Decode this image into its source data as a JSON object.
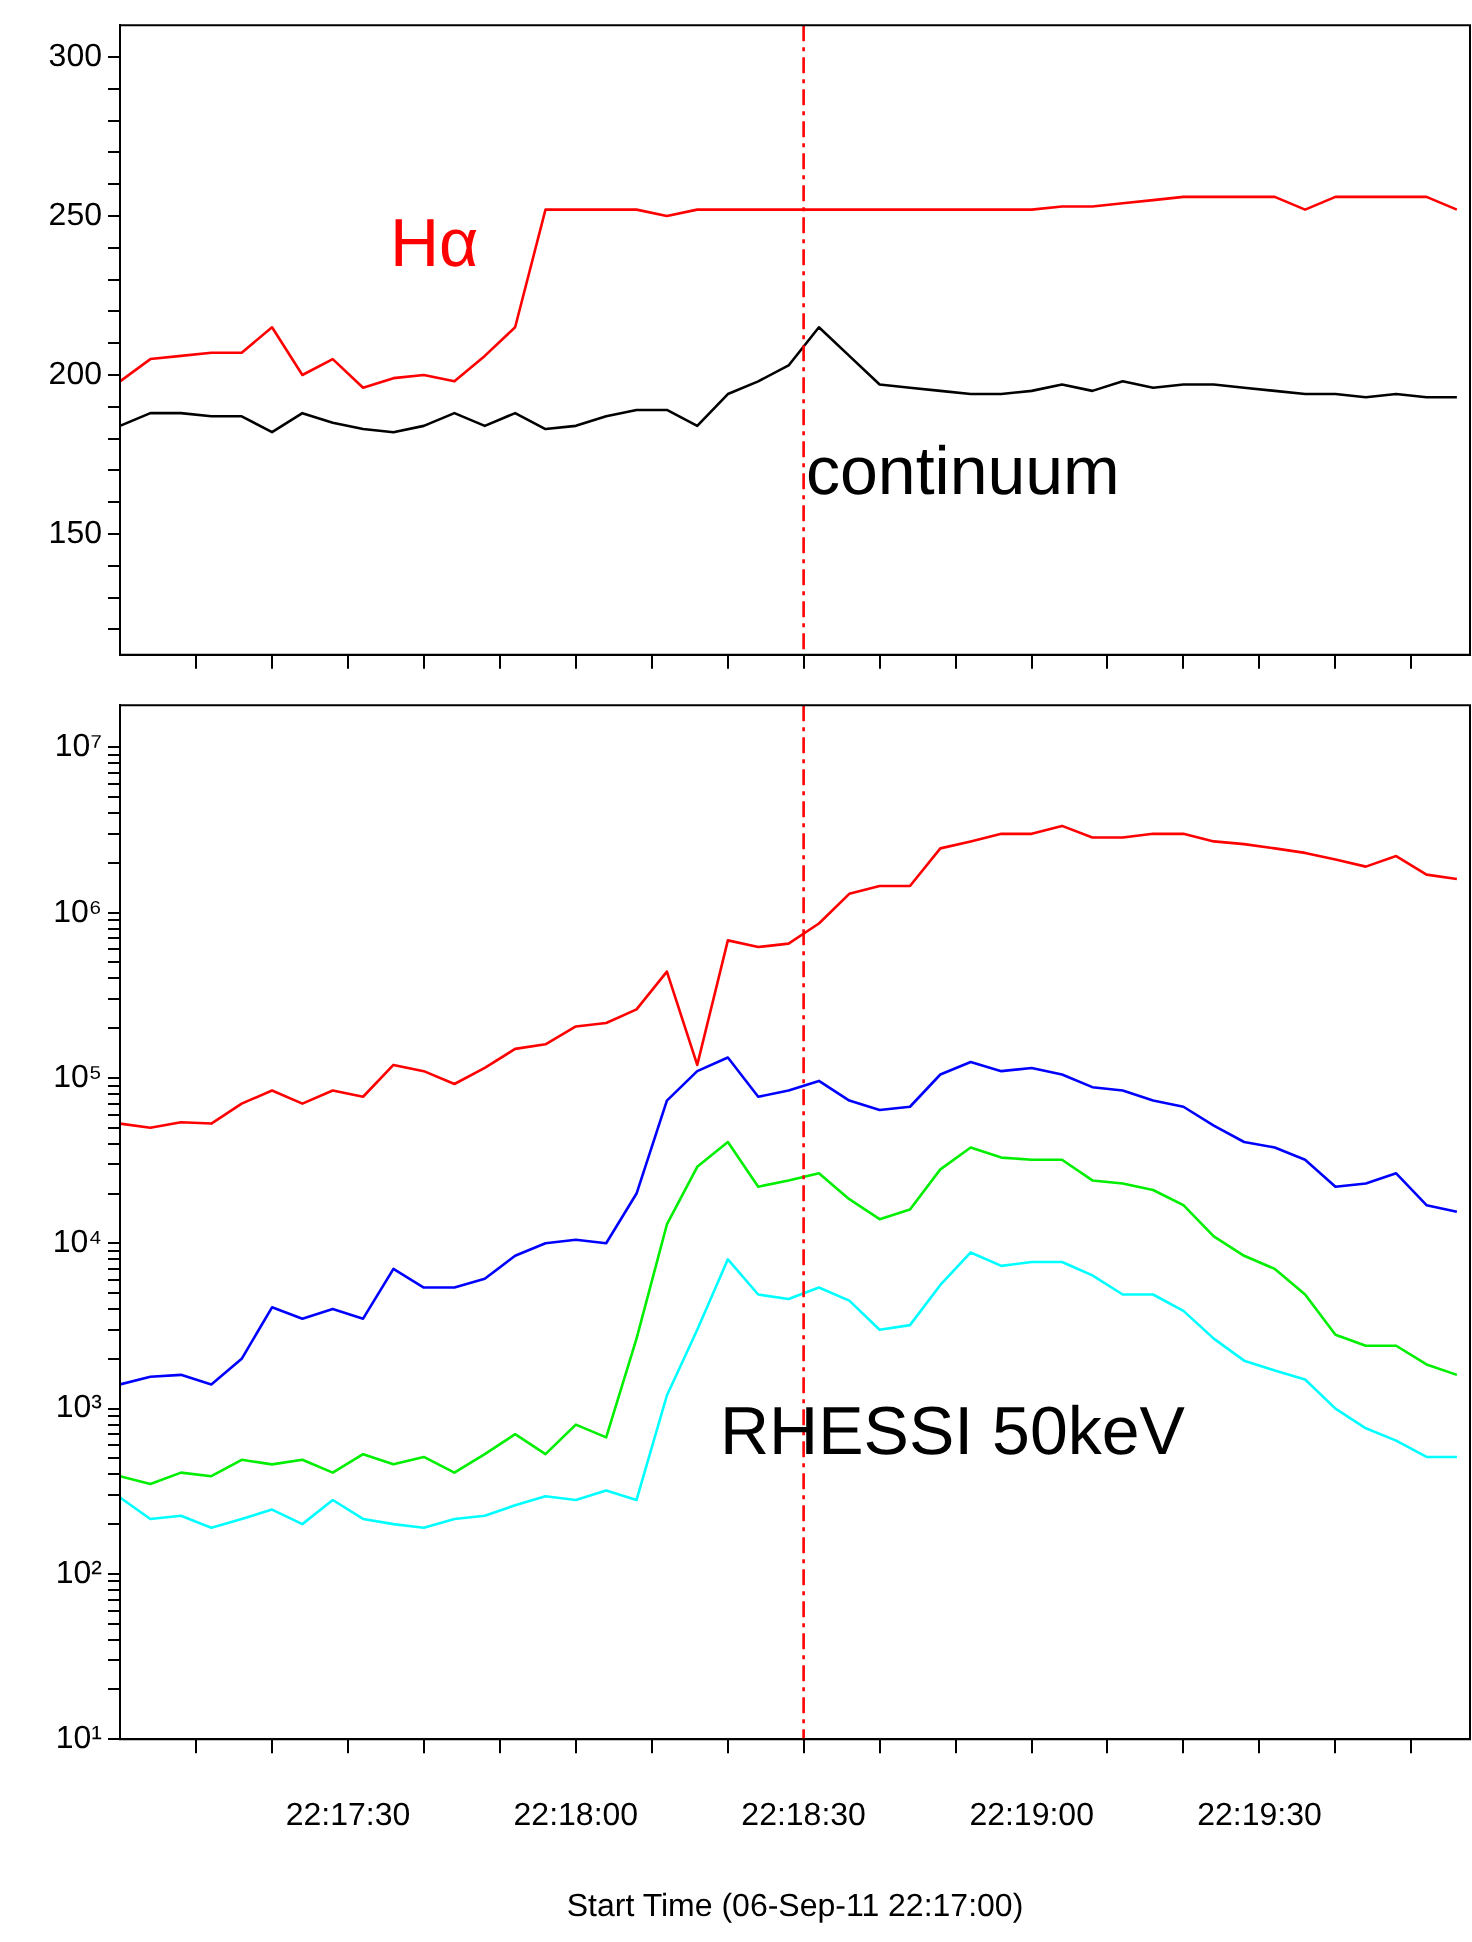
{
  "chart_data": [
    {
      "type": "line",
      "marker": "none",
      "tick_labels": "y",
      "x": [
        22.28333,
        22.28444,
        22.28556,
        22.28667,
        22.28778,
        22.28889,
        22.29,
        22.29111,
        22.29222,
        22.29333,
        22.29444,
        22.29556,
        22.29667,
        22.29778,
        22.29889,
        22.3,
        22.30111,
        22.30222,
        22.30333,
        22.30444,
        22.30556,
        22.30667,
        22.30778,
        22.30889,
        22.31,
        22.31111,
        22.31222,
        22.31333,
        22.31444,
        22.31556,
        22.31667,
        22.31778,
        22.31889,
        22.32,
        22.32111,
        22.32222,
        22.32333,
        22.32444,
        22.32556,
        22.32667,
        22.32778,
        22.32889,
        22.33,
        22.33111,
        22.33222
      ],
      "series": [
        {
          "name": "Hα",
          "color": "#ff0000",
          "values": [
            198,
            205,
            206,
            207,
            207,
            215,
            200,
            205,
            196,
            199,
            200,
            198,
            206,
            215,
            252,
            252,
            252,
            252,
            250,
            252,
            252,
            252,
            252,
            252,
            252,
            252,
            252,
            252,
            252,
            252,
            252,
            253,
            253,
            254,
            255,
            256,
            256,
            256,
            256,
            252,
            256,
            256,
            256,
            256,
            252
          ]
        },
        {
          "name": "continuum",
          "color": "#000000",
          "values": [
            184,
            188,
            188,
            187,
            187,
            182,
            188,
            185,
            183,
            182,
            184,
            188,
            184,
            188,
            183,
            184,
            187,
            189,
            189,
            184,
            194,
            198,
            203,
            215,
            206,
            197,
            196,
            195,
            194,
            194,
            195,
            197,
            195,
            198,
            196,
            197,
            197,
            196,
            195,
            194,
            194,
            193,
            194,
            193,
            193
          ]
        }
      ],
      "xlim": [
        22.28333,
        22.3327
      ],
      "xticks": [
        {
          "value": 22.28611,
          "label": null
        },
        {
          "value": 22.28889,
          "label": null
        },
        {
          "value": 22.29167,
          "label": null
        },
        {
          "value": 22.29444,
          "label": null
        },
        {
          "value": 22.29722,
          "label": null
        },
        {
          "value": 22.3,
          "label": null
        },
        {
          "value": 22.30278,
          "label": null
        },
        {
          "value": 22.30556,
          "label": null
        },
        {
          "value": 22.30833,
          "label": null
        },
        {
          "value": 22.31111,
          "label": null
        },
        {
          "value": 22.31389,
          "label": null
        },
        {
          "value": 22.31667,
          "label": null
        },
        {
          "value": 22.31944,
          "label": null
        },
        {
          "value": 22.32222,
          "label": null
        },
        {
          "value": 22.325,
          "label": null
        },
        {
          "value": 22.32778,
          "label": null
        },
        {
          "value": 22.33056,
          "label": null
        }
      ],
      "ylim": [
        112,
        310
      ],
      "yticks": [
        {
          "value": 120,
          "label": null
        },
        {
          "value": 130,
          "label": null
        },
        {
          "value": 140,
          "label": null
        },
        150,
        {
          "value": 160,
          "label": null
        },
        {
          "value": 170,
          "label": null
        },
        {
          "value": 180,
          "label": null
        },
        {
          "value": 190,
          "label": null
        },
        200,
        {
          "value": 210,
          "label": null
        },
        {
          "value": 220,
          "label": null
        },
        {
          "value": 230,
          "label": null
        },
        {
          "value": 240,
          "label": null
        },
        250,
        {
          "value": 260,
          "label": null
        },
        {
          "value": 270,
          "label": null
        },
        {
          "value": 280,
          "label": null
        },
        {
          "value": 290,
          "label": null
        },
        300
      ],
      "ref_lines": [
        {
          "axis": "x",
          "value": 22.30833,
          "color": "#ff0000",
          "line_style": "dashed"
        }
      ]
    },
    {
      "type": "line",
      "marker": "none",
      "log": "y",
      "xlabel": "Start Time (06-Sep-11 22:17:00)",
      "x": [
        22.28333,
        22.28444,
        22.28556,
        22.28667,
        22.28778,
        22.28889,
        22.29,
        22.29111,
        22.29222,
        22.29333,
        22.29444,
        22.29556,
        22.29667,
        22.29778,
        22.29889,
        22.3,
        22.30111,
        22.30222,
        22.30333,
        22.30444,
        22.30556,
        22.30667,
        22.30778,
        22.30889,
        22.31,
        22.31111,
        22.31222,
        22.31333,
        22.31444,
        22.31556,
        22.31667,
        22.31778,
        22.31889,
        22.32,
        22.32111,
        22.32222,
        22.32333,
        22.32444,
        22.32556,
        22.32667,
        22.32778,
        22.32889,
        22.33,
        22.33111,
        22.33222
      ],
      "series": [
        {
          "color": "#ff0000",
          "values": [
            53000,
            50000,
            54000,
            53000,
            70000,
            84000,
            70000,
            84000,
            77000,
            120000,
            110000,
            92000,
            115000,
            150000,
            160000,
            205000,
            215000,
            260000,
            440000,
            120000,
            680000,
            620000,
            650000,
            860000,
            1300000,
            1450000,
            1450000,
            2450000,
            2700000,
            3000000,
            3000000,
            3350000,
            2850000,
            2850000,
            3000000,
            3000000,
            2700000,
            2600000,
            2450000,
            2300000,
            2100000,
            1900000,
            2200000,
            1700000,
            1600000
          ]
        },
        {
          "color": "#0000ff",
          "values": [
            1400,
            1560,
            1600,
            1400,
            2000,
            4100,
            3500,
            4000,
            3500,
            7000,
            5400,
            5400,
            6100,
            8400,
            10000,
            10500,
            10000,
            20000,
            73000,
            110000,
            133000,
            77000,
            84000,
            96000,
            73000,
            64000,
            67000,
            105000,
            125000,
            110000,
            115000,
            105000,
            88000,
            84000,
            73000,
            67000,
            51500,
            41000,
            38000,
            32000,
            22000,
            23000,
            26500,
            17000,
            15500
          ]
        },
        {
          "color": "#00ee00",
          "values": [
            390,
            350,
            410,
            390,
            490,
            460,
            490,
            410,
            530,
            460,
            510,
            410,
            530,
            700,
            530,
            800,
            670,
            2650,
            13000,
            29000,
            41000,
            22000,
            24000,
            26500,
            18500,
            14000,
            16000,
            28000,
            38000,
            33000,
            32000,
            32000,
            24000,
            23000,
            21000,
            17000,
            11000,
            8400,
            7000,
            4900,
            2800,
            2400,
            2400,
            1850,
            1600
          ]
        },
        {
          "name": "RHESSI 50keV",
          "color": "#00ffff",
          "values": [
            290,
            215,
            225,
            190,
            215,
            245,
            200,
            280,
            215,
            200,
            190,
            215,
            225,
            260,
            295,
            280,
            320,
            280,
            1200,
            3000,
            8000,
            4900,
            4600,
            5400,
            4500,
            3000,
            3200,
            5600,
            8800,
            7300,
            7700,
            7700,
            6400,
            4900,
            4900,
            3900,
            2650,
            1950,
            1700,
            1500,
            1000,
            760,
            640,
            510,
            510
          ]
        }
      ],
      "xlim": [
        22.28333,
        22.3327
      ],
      "xticks": [
        {
          "value": 22.28611,
          "label": null
        },
        {
          "value": 22.28889,
          "label": null
        },
        {
          "value": 22.29167,
          "label": "22:17:30"
        },
        {
          "value": 22.29444,
          "label": null
        },
        {
          "value": 22.29722,
          "label": null
        },
        {
          "value": 22.3,
          "label": "22:18:00"
        },
        {
          "value": 22.30278,
          "label": null
        },
        {
          "value": 22.30556,
          "label": null
        },
        {
          "value": 22.30833,
          "label": "22:18:30"
        },
        {
          "value": 22.31111,
          "label": null
        },
        {
          "value": 22.31389,
          "label": null
        },
        {
          "value": 22.31667,
          "label": "22:19:00"
        },
        {
          "value": 22.31944,
          "label": null
        },
        {
          "value": 22.32222,
          "label": null
        },
        {
          "value": 22.325,
          "label": "22:19:30"
        },
        {
          "value": 22.32778,
          "label": null
        },
        {
          "value": 22.33056,
          "label": null
        }
      ],
      "ylim": [
        10,
        18000000
      ],
      "yticks": [
        {
          "value": 10,
          "label": "10¹"
        },
        {
          "value": 20,
          "label": null
        },
        {
          "value": 30,
          "label": null
        },
        {
          "value": 40,
          "label": null
        },
        {
          "value": 50,
          "label": null
        },
        {
          "value": 60,
          "label": null
        },
        {
          "value": 70,
          "label": null
        },
        {
          "value": 80,
          "label": null
        },
        {
          "value": 90,
          "label": null
        },
        {
          "value": 100,
          "label": "10²"
        },
        {
          "value": 200,
          "label": null
        },
        {
          "value": 300,
          "label": null
        },
        {
          "value": 400,
          "label": null
        },
        {
          "value": 500,
          "label": null
        },
        {
          "value": 600,
          "label": null
        },
        {
          "value": 700,
          "label": null
        },
        {
          "value": 800,
          "label": null
        },
        {
          "value": 900,
          "label": null
        },
        {
          "value": 1000,
          "label": "10³"
        },
        {
          "value": 2000,
          "label": null
        },
        {
          "value": 3000,
          "label": null
        },
        {
          "value": 4000,
          "label": null
        },
        {
          "value": 5000,
          "label": null
        },
        {
          "value": 6000,
          "label": null
        },
        {
          "value": 7000,
          "label": null
        },
        {
          "value": 8000,
          "label": null
        },
        {
          "value": 9000,
          "label": null
        },
        {
          "value": 10000,
          "label": "10⁴"
        },
        {
          "value": 20000,
          "label": null
        },
        {
          "value": 30000,
          "label": null
        },
        {
          "value": 40000,
          "label": null
        },
        {
          "value": 50000,
          "label": null
        },
        {
          "value": 60000,
          "label": null
        },
        {
          "value": 70000,
          "label": null
        },
        {
          "value": 80000,
          "label": null
        },
        {
          "value": 90000,
          "label": null
        },
        {
          "value": 100000,
          "label": "10⁵"
        },
        {
          "value": 200000,
          "label": null
        },
        {
          "value": 300000,
          "label": null
        },
        {
          "value": 400000,
          "label": null
        },
        {
          "value": 500000,
          "label": null
        },
        {
          "value": 600000,
          "label": null
        },
        {
          "value": 700000,
          "label": null
        },
        {
          "value": 800000,
          "label": null
        },
        {
          "value": 900000,
          "label": null
        },
        {
          "value": 1000000,
          "label": "10⁶"
        },
        {
          "value": 2000000,
          "label": null
        },
        {
          "value": 3000000,
          "label": null
        },
        {
          "value": 4000000,
          "label": null
        },
        {
          "value": 5000000,
          "label": null
        },
        {
          "value": 6000000,
          "label": null
        },
        {
          "value": 7000000,
          "label": null
        },
        {
          "value": 8000000,
          "label": null
        },
        {
          "value": 9000000,
          "label": null
        },
        {
          "value": 10000000,
          "label": "10⁷"
        }
      ],
      "ref_lines": [
        {
          "axis": "x",
          "value": 22.30833,
          "color": "#ff0000",
          "line_style": "dashed"
        }
      ]
    }
  ]
}
